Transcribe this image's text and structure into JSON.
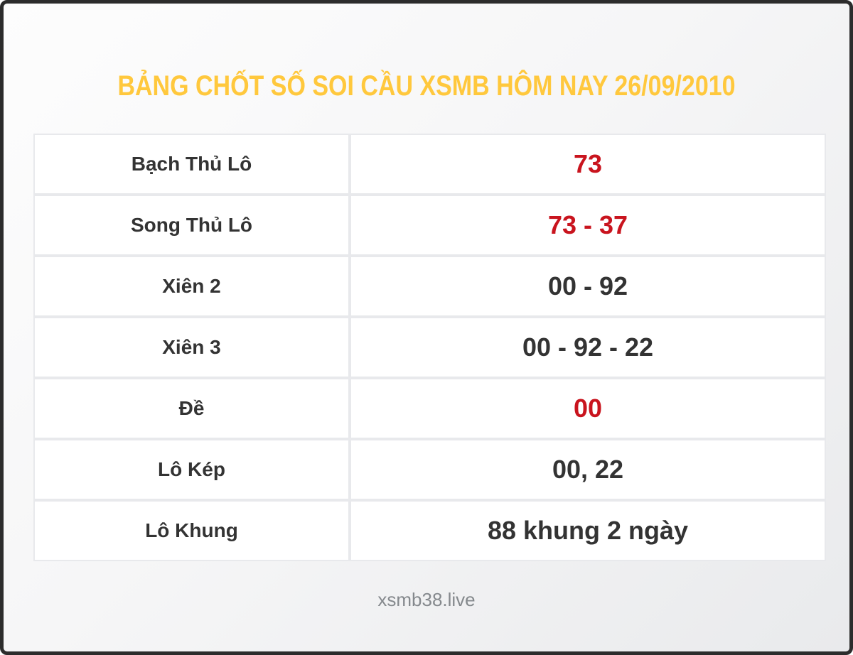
{
  "title": "BẢNG CHỐT SỐ SOI CẦU XSMB HÔM NAY 26/09/2010",
  "table": {
    "rows": [
      {
        "label": "Bạch Thủ Lô",
        "value": "73",
        "highlight": true
      },
      {
        "label": "Song Thủ Lô",
        "value": "73 - 37",
        "highlight": true
      },
      {
        "label": "Xiên 2",
        "value": "00 - 92",
        "highlight": false
      },
      {
        "label": "Xiên 3",
        "value": "00 - 92 - 22",
        "highlight": false
      },
      {
        "label": "Đề",
        "value": "00",
        "highlight": true
      },
      {
        "label": "Lô Kép",
        "value": "00, 22",
        "highlight": false
      },
      {
        "label": "Lô Khung",
        "value": "88 khung 2 ngày",
        "highlight": false
      }
    ]
  },
  "footer": {
    "site": "xsmb38.live"
  },
  "colors": {
    "title": "#ffc83d",
    "highlight": "#c9141e",
    "text": "#333333",
    "footer": "#85898d",
    "frame": "#2c2c2c",
    "cellborder": "#e8e9ec"
  }
}
